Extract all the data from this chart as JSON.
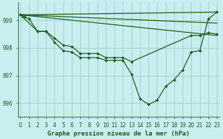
{
  "lines": [
    {
      "x": [
        0,
        1,
        2,
        3,
        4,
        5,
        6,
        7,
        8,
        9,
        10,
        11,
        12,
        13,
        14,
        15,
        16,
        17,
        18,
        19,
        20,
        21,
        22,
        23
      ],
      "y": [
        999.2,
        999.05,
        998.6,
        998.6,
        998.2,
        997.9,
        997.85,
        997.65,
        997.65,
        997.65,
        997.55,
        997.55,
        997.55,
        997.05,
        996.15,
        995.95,
        996.1,
        996.6,
        996.85,
        997.2,
        997.85,
        997.9,
        999.05,
        999.3
      ],
      "marker": true,
      "has_arrow_start": true
    },
    {
      "x": [
        0,
        2,
        3,
        4,
        5,
        6,
        7,
        8,
        9,
        10,
        11,
        12,
        13,
        20,
        21,
        22,
        23
      ],
      "y": [
        999.2,
        998.6,
        998.6,
        998.35,
        998.1,
        998.05,
        997.8,
        997.8,
        997.8,
        997.65,
        997.65,
        997.65,
        997.5,
        998.45,
        998.45,
        998.55,
        998.5
      ],
      "marker": true,
      "has_arrow_start": false
    },
    {
      "x": [
        0,
        23
      ],
      "y": [
        999.2,
        999.3
      ],
      "marker": false,
      "has_arrow_start": false
    },
    {
      "x": [
        0,
        23
      ],
      "y": [
        999.2,
        998.9
      ],
      "marker": false,
      "has_arrow_start": false
    },
    {
      "x": [
        0,
        23
      ],
      "y": [
        999.2,
        998.45
      ],
      "marker": false,
      "has_arrow_start": false
    }
  ],
  "line_color": "#1a5c1a",
  "background_color": "#c8eef0",
  "grid_color": "#a0ccc8",
  "xlabel": "Graphe pression niveau de la mer (hPa)",
  "xlabel_fontsize": 6.5,
  "ylim": [
    995.5,
    999.65
  ],
  "xlim": [
    -0.3,
    23.3
  ],
  "yticks": [
    996,
    997,
    998,
    999
  ],
  "xticks": [
    0,
    1,
    2,
    3,
    4,
    5,
    6,
    7,
    8,
    9,
    10,
    11,
    12,
    13,
    14,
    15,
    16,
    17,
    18,
    19,
    20,
    21,
    22,
    23
  ],
  "tick_fontsize": 5.5,
  "tick_color": "#1a5c1a",
  "linewidth": 0.9,
  "markersize": 2.0
}
